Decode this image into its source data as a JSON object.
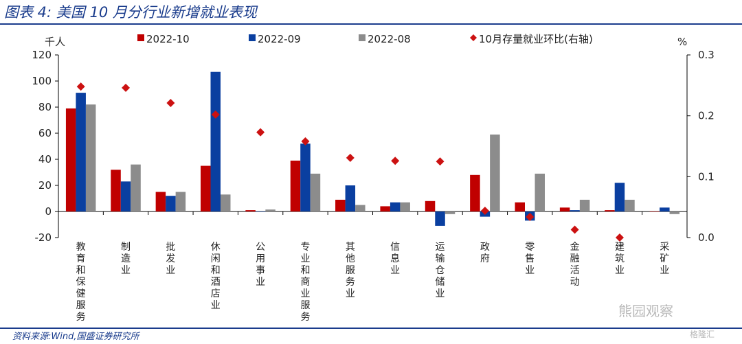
{
  "header": {
    "title": "图表 4:  美国 10 月分行业新增就业表现"
  },
  "footer": {
    "source": "资料来源:Wind,国盛证券研究所",
    "watermark": "熊园观察",
    "watermark2": "格隆汇"
  },
  "colors": {
    "s2022_10": "#c00000",
    "s2022_09": "#0a3fa0",
    "s2022_08": "#8c8c8c",
    "ratio": "#cc1111",
    "title": "#1a3c8c"
  },
  "chart_data": {
    "type": "bar",
    "left_unit": "千人",
    "right_unit": "%",
    "ylim": [
      -20,
      120
    ],
    "yticks": [
      "-20",
      "0",
      "20",
      "40",
      "60",
      "80",
      "100",
      "120"
    ],
    "y2lim": [
      0,
      0.3
    ],
    "y2ticks": [
      "0.0",
      "0.1",
      "0.2",
      "0.3"
    ],
    "categories": [
      "教育和保健服务",
      "制造业",
      "批发业",
      "休闲和酒店业",
      "公用事业",
      "专业和商业服务",
      "其他服务业",
      "信息业",
      "运输仓储业",
      "政府",
      "零售业",
      "金融活动",
      "建筑业",
      "采矿业"
    ],
    "series": [
      {
        "name": "2022-10",
        "values": [
          79,
          32,
          15,
          35,
          1,
          39,
          9,
          4,
          8,
          28,
          7,
          3,
          1,
          0
        ]
      },
      {
        "name": "2022-09",
        "values": [
          91,
          23,
          12,
          107,
          0,
          52,
          20,
          7,
          -11,
          -4,
          -7,
          1,
          22,
          3
        ]
      },
      {
        "name": "2022-08",
        "values": [
          82,
          36,
          15,
          13,
          1.5,
          29,
          5,
          7,
          -2,
          59,
          29,
          9,
          9,
          -2
        ]
      }
    ],
    "ratio_series": {
      "name": "10月存量就业环比(右轴)",
      "values": [
        0.248,
        0.246,
        0.221,
        0.202,
        0.173,
        0.158,
        0.131,
        0.126,
        0.125,
        0.044,
        0.034,
        0.013,
        0.0,
        null
      ]
    },
    "legend_position": "top"
  }
}
